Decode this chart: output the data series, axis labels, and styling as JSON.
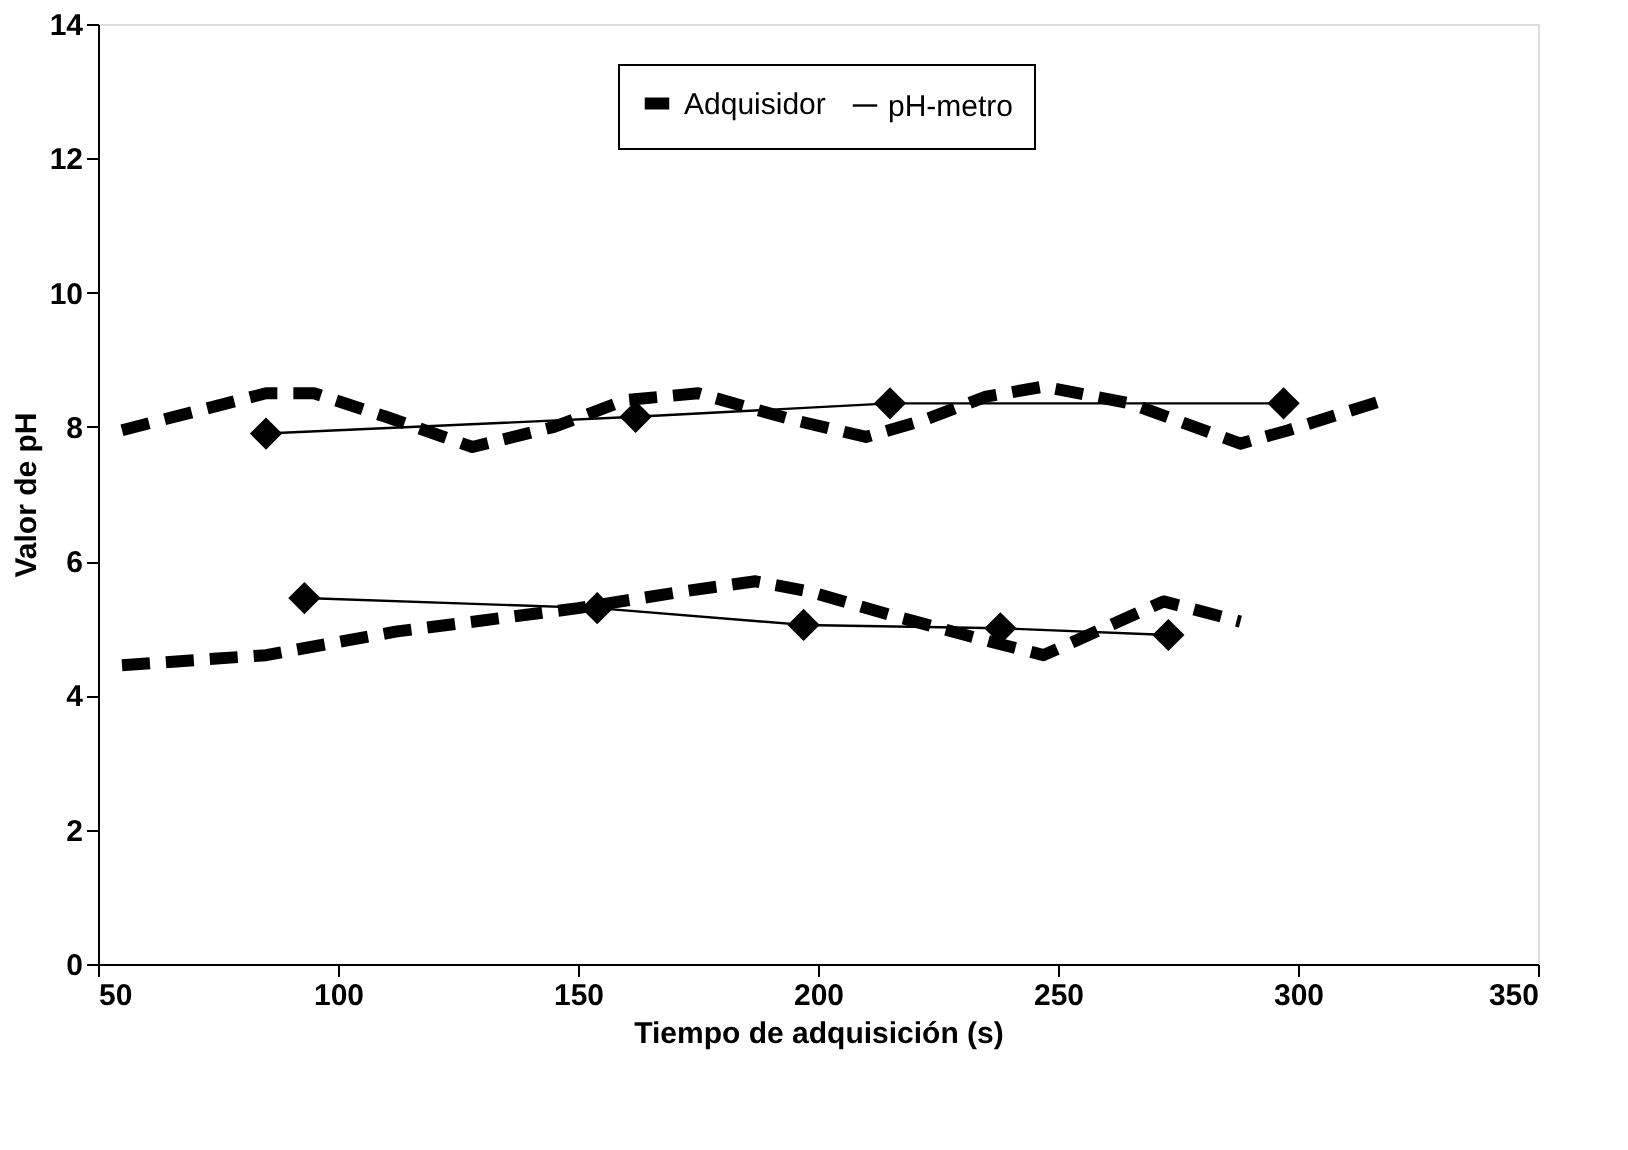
{
  "chart_data": {
    "type": "line",
    "xlabel": "Tiempo de adquisición (s)",
    "ylabel": "Valor de pH",
    "xlim": [
      50,
      350
    ],
    "xticks": [
      50,
      100,
      150,
      200,
      250,
      300,
      350
    ],
    "ylim": [
      0,
      14
    ],
    "yticks": [
      0,
      2,
      4,
      6,
      8,
      10,
      12,
      14
    ],
    "grid": false,
    "legend": "top",
    "series": [
      {
        "name": "Adquisidor",
        "color": "#000000",
        "line_style": "dashed",
        "marker": "none",
        "x": [
          55,
          85,
          95,
          110,
          128,
          145,
          160,
          175,
          195,
          210,
          222,
          235,
          247,
          265,
          288,
          298,
          318,
          null,
          55,
          85,
          112,
          150,
          172,
          187,
          198,
          215,
          236,
          247,
          272,
          288
        ],
        "values": [
          7.95,
          8.5,
          8.5,
          8.15,
          7.7,
          8.0,
          8.4,
          8.5,
          8.1,
          7.85,
          8.1,
          8.45,
          8.6,
          8.35,
          7.75,
          7.95,
          8.4,
          null,
          4.45,
          4.6,
          4.95,
          5.3,
          5.55,
          5.7,
          5.55,
          5.2,
          4.8,
          4.6,
          5.4,
          5.1
        ]
      },
      {
        "name": "pH-metro",
        "color": "#000000",
        "line_style": "solid",
        "marker": "diamond",
        "x": [
          85,
          162,
          215,
          297,
          null,
          93,
          154,
          197,
          238,
          273
        ],
        "values": [
          7.9,
          8.15,
          8.35,
          8.35,
          null,
          5.45,
          5.3,
          5.05,
          5.0,
          4.9
        ]
      }
    ]
  }
}
